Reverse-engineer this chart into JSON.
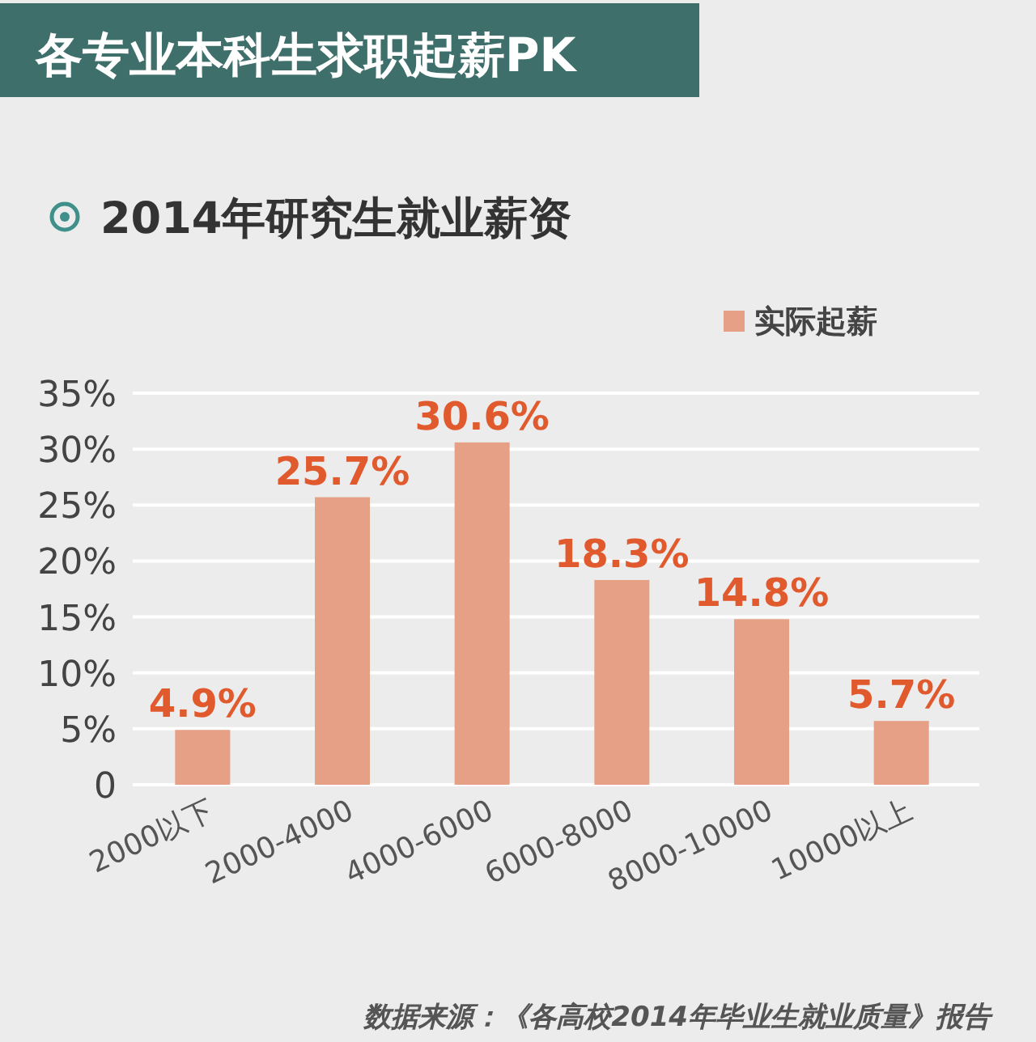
{
  "chart_data": {
    "type": "bar",
    "title": "各专业本科生求职起薪PK",
    "subtitle": "2014年研究生就业薪资",
    "categories": [
      "2000以下",
      "2000-4000",
      "4000-6000",
      "6000-8000",
      "8000-10000",
      "10000以上"
    ],
    "series": [
      {
        "name": "实际起薪",
        "color": "#e6a085",
        "values": [
          4.9,
          25.7,
          30.6,
          18.3,
          14.8,
          5.7
        ],
        "value_labels": [
          "4.9%",
          "25.7%",
          "30.6%",
          "18.3%",
          "14.8%",
          "5.7%"
        ]
      }
    ],
    "ylim": [
      0,
      35
    ],
    "yticks": [
      0,
      {
        "value": 5,
        "label": "5%"
      },
      {
        "value": 10,
        "label": "10%"
      },
      {
        "value": 15,
        "label": "15%"
      },
      {
        "value": 20,
        "label": "20%"
      },
      {
        "value": 25,
        "label": "25%"
      },
      {
        "value": 30,
        "label": "30%"
      },
      {
        "value": 35,
        "label": "35%"
      }
    ],
    "grid": "y",
    "legend": "top right",
    "annotations": [
      "数据来源：《各高校2014年毕业生就业质量》报告"
    ]
  }
}
